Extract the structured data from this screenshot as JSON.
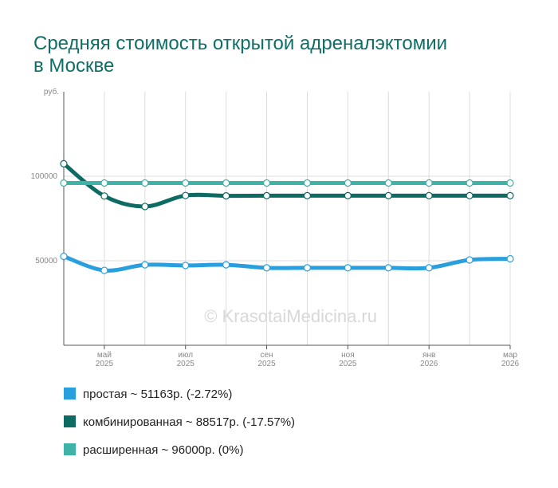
{
  "chart_data": {
    "type": "line",
    "title": "Средняя стоимость открытой адреналэктомии в Москве",
    "y_unit": "руб.",
    "watermark": "© KrasotaiMedicina.ru",
    "categories": [
      null,
      "май 2025",
      null,
      "июл 2025",
      null,
      "сен 2025",
      null,
      "ноя 2025",
      null,
      "янв 2026",
      null,
      "мар 2026"
    ],
    "ylim": [
      0,
      150000
    ],
    "yticks": [
      50000,
      100000
    ],
    "grid": true,
    "series": [
      {
        "name": "простая ~ 51163р. (-2.72%)",
        "color": "#2a9fdd",
        "values": [
          52593,
          44300,
          47600,
          47200,
          47600,
          45800,
          45800,
          45800,
          45800,
          45800,
          50500,
          51163
        ]
      },
      {
        "name": "комбинированная ~ 88517р. (-17.57%)",
        "color": "#0d6b63",
        "values": [
          107385,
          88300,
          82100,
          88600,
          88400,
          88517,
          88517,
          88517,
          88517,
          88517,
          88517,
          88517
        ]
      },
      {
        "name": "расширенная ~ 96000р. (0%)",
        "color": "#3fb3a8",
        "values": [
          96000,
          96000,
          96000,
          96000,
          96000,
          96000,
          96000,
          96000,
          96000,
          96000,
          96000,
          96000
        ]
      }
    ]
  }
}
